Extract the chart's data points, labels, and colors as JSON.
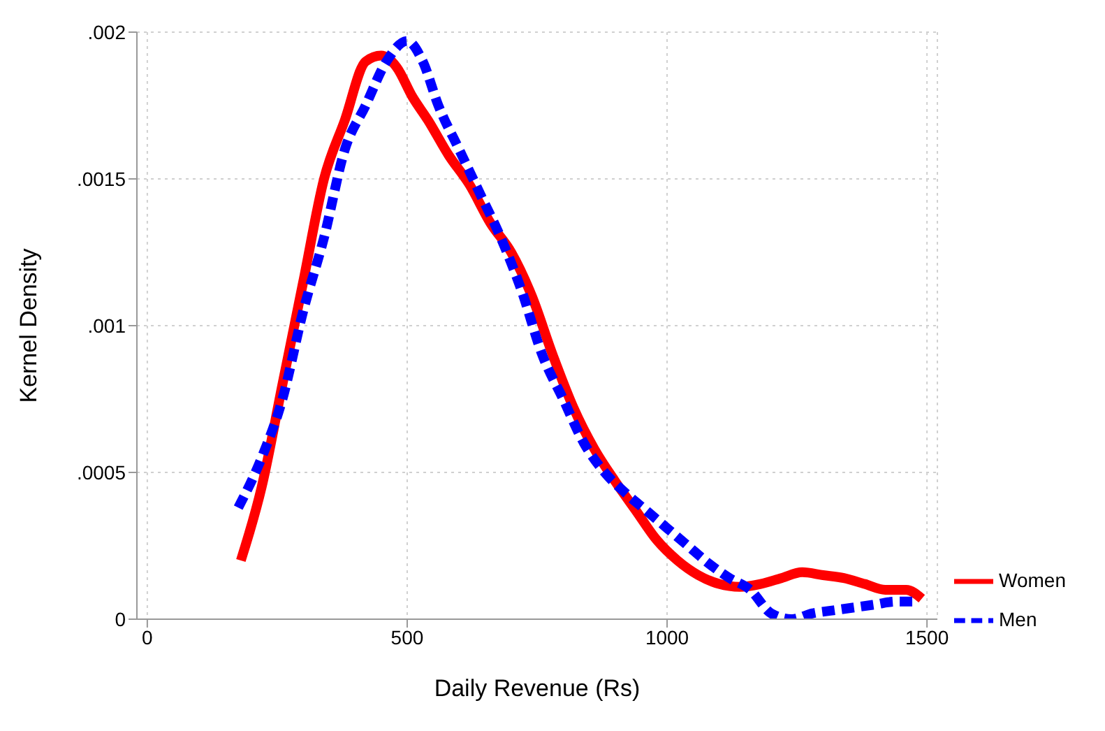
{
  "chart_data": {
    "type": "line",
    "xlabel": "Daily Revenue (Rs)",
    "ylabel": "Kernel Density",
    "xlim": [
      -20,
      1520
    ],
    "xticks": [
      0,
      500,
      1000,
      1500
    ],
    "ylim": [
      0,
      0.002
    ],
    "yticks": [
      {
        "value": 0,
        "label": "0"
      },
      {
        "value": 0.0005,
        "label": ".0005"
      },
      {
        "value": 0.001,
        "label": ".001"
      },
      {
        "value": 0.0015,
        "label": ".0015"
      },
      {
        "value": 0.002,
        "label": ".002"
      }
    ],
    "grid": true,
    "legend": "right",
    "marker": "none",
    "series": [
      {
        "name": "Women",
        "color": "#ff0000",
        "line_style": "solid",
        "x": [
          180,
          220,
          260,
          300,
          340,
          380,
          420,
          450,
          480,
          510,
          540,
          580,
          620,
          660,
          700,
          740,
          780,
          820,
          860,
          900,
          940,
          980,
          1020,
          1060,
          1100,
          1140,
          1180,
          1220,
          1260,
          1300,
          1340,
          1380,
          1420,
          1460,
          1490
        ],
        "values": [
          0.0002,
          0.00045,
          0.0008,
          0.00115,
          0.0015,
          0.0017,
          0.0019,
          0.00192,
          0.00188,
          0.00178,
          0.0017,
          0.00158,
          0.00148,
          0.00135,
          0.00125,
          0.0011,
          0.0009,
          0.00072,
          0.00058,
          0.00047,
          0.00037,
          0.00027,
          0.0002,
          0.00015,
          0.00012,
          0.00011,
          0.00012,
          0.00014,
          0.00016,
          0.00015,
          0.00014,
          0.00012,
          0.0001,
          0.0001,
          7e-05
        ]
      },
      {
        "name": "Men",
        "color": "#0000ff",
        "line_style": "dashed",
        "x": [
          175,
          220,
          260,
          300,
          340,
          380,
          420,
          460,
          500,
          530,
          560,
          600,
          640,
          680,
          720,
          760,
          800,
          840,
          880,
          920,
          960,
          1000,
          1040,
          1080,
          1120,
          1160,
          1200,
          1240,
          1280,
          1320,
          1360,
          1400,
          1440,
          1480
        ],
        "values": [
          0.00038,
          0.00055,
          0.00075,
          0.00105,
          0.0013,
          0.0016,
          0.00175,
          0.0019,
          0.00197,
          0.0019,
          0.00175,
          0.0016,
          0.00145,
          0.0013,
          0.00112,
          0.0009,
          0.00075,
          0.0006,
          0.0005,
          0.00043,
          0.00037,
          0.00031,
          0.00025,
          0.00019,
          0.00014,
          0.0001,
          2e-05,
          0,
          2e-05,
          3e-05,
          4e-05,
          5e-05,
          6e-05,
          6e-05
        ]
      }
    ]
  }
}
